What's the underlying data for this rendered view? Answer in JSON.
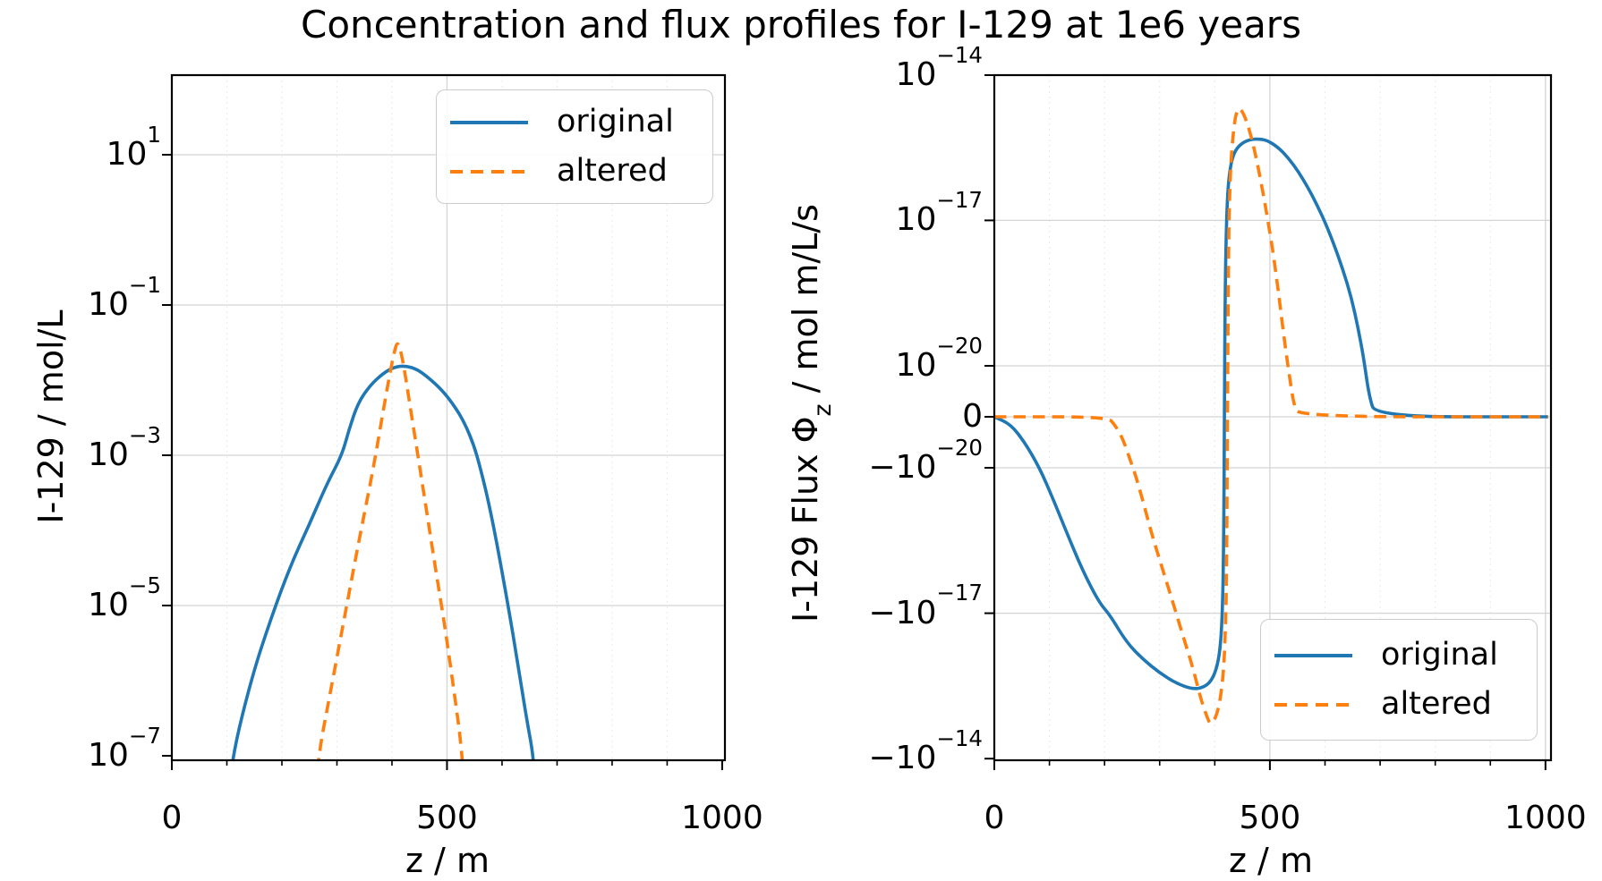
{
  "title": "Concentration and flux profiles for I-129 at 1e6 years",
  "colors": {
    "original": "#1f77b4",
    "altered": "#ff7f0e",
    "grid_major": "#d4d4d4",
    "grid_minor": "#e8e8e8",
    "axis": "#000000",
    "background": "#ffffff",
    "legend_border": "#cccccc"
  },
  "legend": {
    "items": [
      {
        "label": "original",
        "line": "solid"
      },
      {
        "label": "altered",
        "line": "dashed"
      }
    ]
  },
  "chart_data": [
    {
      "type": "line",
      "panel": "concentration",
      "xlabel": "z / m",
      "ylabel": "I-129 / mol/L",
      "yscale": "log",
      "ylim": [
        1e-07,
        100
      ],
      "xlim": [
        0,
        1005
      ],
      "grid": "on",
      "legend_position": "upper right inset",
      "xticks": [
        0,
        500,
        1000
      ],
      "x_minor_tick_step": 100,
      "yticks": [
        {
          "value": 10.0,
          "label": "10^1"
        },
        {
          "value": 0.1,
          "label": "10^-1"
        },
        {
          "value": 0.001,
          "label": "10^-3"
        },
        {
          "value": 1e-05,
          "label": "10^-5"
        },
        {
          "value": 1e-07,
          "label": "10^-7"
        }
      ],
      "series": [
        {
          "name": "original",
          "style": "solid",
          "color": "#1f77b4",
          "points": [
            [
              102,
              2e-08
            ],
            [
              110,
              1e-07
            ],
            [
              145,
              1.1e-06
            ],
            [
              180,
              6.7e-06
            ],
            [
              215,
              3.3e-05
            ],
            [
              250,
              0.00012
            ],
            [
              282,
              0.00042
            ],
            [
              309,
              0.001
            ],
            [
              322,
              0.0022
            ],
            [
              338,
              0.0049
            ],
            [
              360,
              0.0085
            ],
            [
              385,
              0.0125
            ],
            [
              405,
              0.015
            ],
            [
              425,
              0.0155
            ],
            [
              445,
              0.014
            ],
            [
              465,
              0.011
            ],
            [
              490,
              0.0075
            ],
            [
              512,
              0.0047
            ],
            [
              532,
              0.0027
            ],
            [
              549,
              0.00135
            ],
            [
              560,
              0.0007
            ],
            [
              575,
              0.00025
            ],
            [
              592,
              6e-05
            ],
            [
              610,
              1.1e-05
            ],
            [
              628,
              1.8e-06
            ],
            [
              645,
              3e-07
            ],
            [
              657,
              1e-07
            ],
            [
              663,
              2e-08
            ]
          ]
        },
        {
          "name": "altered",
          "style": "dashed",
          "color": "#ff7f0e",
          "points": [
            [
              260,
              2e-08
            ],
            [
              266,
              1e-07
            ],
            [
              288,
              7e-07
            ],
            [
              310,
              5e-06
            ],
            [
              330,
              3e-05
            ],
            [
              350,
              0.00017
            ],
            [
              368,
              0.0008
            ],
            [
              383,
              0.0035
            ],
            [
              395,
              0.011
            ],
            [
              403,
              0.022
            ],
            [
              410,
              0.0335
            ],
            [
              417,
              0.023
            ],
            [
              424,
              0.012
            ],
            [
              434,
              0.004
            ],
            [
              447,
              0.001
            ],
            [
              462,
              0.0002
            ],
            [
              478,
              3.5e-05
            ],
            [
              495,
              6e-06
            ],
            [
              512,
              8e-07
            ],
            [
              527,
              1.2e-07
            ],
            [
              533,
              2e-08
            ]
          ]
        }
      ]
    },
    {
      "type": "line",
      "panel": "flux",
      "xlabel": "z / m",
      "ylabel": "I-129 Flux Φ_z / mol m/L/s",
      "ylabel_parts": {
        "pre": "I-129 Flux Φ",
        "sub": "z",
        "post": " / mol m/L/s"
      },
      "yscale": "symlog",
      "linthresh": 1e-20,
      "ylim": [
        -1e-14,
        1e-14
      ],
      "xlim": [
        0,
        1010
      ],
      "grid": "on",
      "legend_position": "lower right inset",
      "xticks": [
        0,
        500,
        1000
      ],
      "x_minor_tick_step": 100,
      "yticks": [
        {
          "value": 1e-14,
          "label": "10^-14"
        },
        {
          "value": 1e-17,
          "label": "10^-17"
        },
        {
          "value": 1e-20,
          "label": "10^-20"
        },
        {
          "value": 0,
          "label": "0"
        },
        {
          "value": -1e-20,
          "label": "-10^-20"
        },
        {
          "value": -1e-17,
          "label": "-10^-17"
        },
        {
          "value": -1e-14,
          "label": "-10^-14"
        }
      ],
      "series": [
        {
          "name": "original",
          "style": "solid",
          "color": "#1f77b4",
          "points": [
            [
              0,
              0
            ],
            [
              30,
              -1.5e-21
            ],
            [
              55,
              -5e-21
            ],
            [
              82,
              -1e-20
            ],
            [
              105,
              -4e-20
            ],
            [
              130,
              -2e-19
            ],
            [
              160,
              -1.3e-18
            ],
            [
              190,
              -6e-18
            ],
            [
              210,
              -1.1e-17
            ],
            [
              240,
              -4e-17
            ],
            [
              270,
              -9e-17
            ],
            [
              300,
              -1.7e-16
            ],
            [
              330,
              -2.8e-16
            ],
            [
              360,
              -3.7e-16
            ],
            [
              380,
              -3.4e-16
            ],
            [
              395,
              -2.4e-16
            ],
            [
              405,
              -1.2e-16
            ],
            [
              411,
              -4e-17
            ],
            [
              414,
              -8e-18
            ],
            [
              416,
              -5e-19
            ],
            [
              417.5,
              0
            ],
            [
              419,
              5e-19
            ],
            [
              421,
              8e-18
            ],
            [
              424,
              5e-17
            ],
            [
              429,
              1.5e-16
            ],
            [
              437,
              2.8e-16
            ],
            [
              450,
              4e-16
            ],
            [
              465,
              4.7e-16
            ],
            [
              480,
              4.8e-16
            ],
            [
              495,
              4.5e-16
            ],
            [
              515,
              3.2e-16
            ],
            [
              534,
              1.9e-16
            ],
            [
              552,
              1e-16
            ],
            [
              568,
              5e-17
            ],
            [
              582,
              2.5e-17
            ],
            [
              598,
              1.05e-17
            ],
            [
              615,
              3.5e-18
            ],
            [
              632,
              1e-18
            ],
            [
              648,
              2.5e-19
            ],
            [
              660,
              6e-20
            ],
            [
              670,
              1.5e-20
            ],
            [
              680,
              4e-21
            ],
            [
              692,
              0
            ],
            [
              1005,
              0
            ]
          ]
        },
        {
          "name": "altered",
          "style": "dashed",
          "color": "#ff7f0e",
          "points": [
            [
              0,
              0
            ],
            [
              205,
              0
            ],
            [
              218,
              -1.5e-21
            ],
            [
              232,
              -4e-21
            ],
            [
              245,
              -8e-21
            ],
            [
              256,
              -1.4e-20
            ],
            [
              270,
              -5e-20
            ],
            [
              285,
              -2.2e-19
            ],
            [
              300,
              -8e-19
            ],
            [
              315,
              -2.8e-18
            ],
            [
              330,
              -1e-17
            ],
            [
              345,
              -3.7e-17
            ],
            [
              360,
              -1.3e-16
            ],
            [
              375,
              -6e-16
            ],
            [
              384,
              -1.2e-15
            ],
            [
              391,
              -1.95e-15
            ],
            [
              398,
              -1.7e-15
            ],
            [
              405,
              -1.1e-15
            ],
            [
              411,
              -5e-16
            ],
            [
              416,
              -1.5e-16
            ],
            [
              419,
              -3e-17
            ],
            [
              421.5,
              -2e-18
            ],
            [
              423,
              0
            ],
            [
              425,
              3e-18
            ],
            [
              427,
              4e-17
            ],
            [
              430,
              2.2e-16
            ],
            [
              434,
              7e-16
            ],
            [
              438,
              1.5e-15
            ],
            [
              443,
              2.1e-15
            ],
            [
              449,
              1.85e-15
            ],
            [
              456,
              1.25e-15
            ],
            [
              464,
              6.5e-16
            ],
            [
              472,
              2.8e-16
            ],
            [
              480,
              1.05e-16
            ],
            [
              488,
              3.5e-17
            ],
            [
              495,
              1.2e-17
            ],
            [
              503,
              3.5e-18
            ],
            [
              511,
              8e-19
            ],
            [
              519,
              1.6e-19
            ],
            [
              527,
              3e-20
            ],
            [
              534,
              9e-21
            ],
            [
              543,
              2.5e-21
            ],
            [
              553,
              0
            ],
            [
              1005,
              0
            ]
          ]
        }
      ]
    }
  ]
}
